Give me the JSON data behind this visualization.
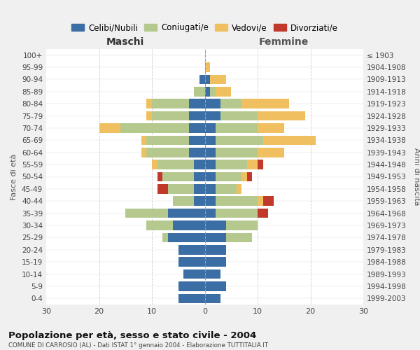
{
  "age_groups": [
    "0-4",
    "5-9",
    "10-14",
    "15-19",
    "20-24",
    "25-29",
    "30-34",
    "35-39",
    "40-44",
    "45-49",
    "50-54",
    "55-59",
    "60-64",
    "65-69",
    "70-74",
    "75-79",
    "80-84",
    "85-89",
    "90-94",
    "95-99",
    "100+"
  ],
  "birth_years": [
    "1999-2003",
    "1994-1998",
    "1989-1993",
    "1984-1988",
    "1979-1983",
    "1974-1978",
    "1969-1973",
    "1964-1968",
    "1959-1963",
    "1954-1958",
    "1949-1953",
    "1944-1948",
    "1939-1943",
    "1934-1938",
    "1929-1933",
    "1924-1928",
    "1919-1923",
    "1914-1918",
    "1909-1913",
    "1904-1908",
    "≤ 1903"
  ],
  "maschi": {
    "celibi": [
      5,
      5,
      4,
      5,
      5,
      7,
      6,
      7,
      2,
      2,
      2,
      2,
      3,
      3,
      3,
      3,
      3,
      0,
      1,
      0,
      0
    ],
    "coniugati": [
      0,
      0,
      0,
      0,
      0,
      1,
      5,
      8,
      4,
      5,
      6,
      7,
      8,
      8,
      13,
      7,
      7,
      2,
      0,
      0,
      0
    ],
    "vedovi": [
      0,
      0,
      0,
      0,
      0,
      0,
      0,
      0,
      0,
      0,
      0,
      1,
      1,
      1,
      4,
      1,
      1,
      0,
      0,
      0,
      0
    ],
    "divorziati": [
      0,
      0,
      0,
      0,
      0,
      0,
      0,
      0,
      0,
      2,
      1,
      0,
      0,
      0,
      0,
      0,
      0,
      0,
      0,
      0,
      0
    ]
  },
  "femmine": {
    "nubili": [
      3,
      4,
      3,
      4,
      4,
      4,
      4,
      2,
      2,
      2,
      2,
      2,
      2,
      2,
      2,
      3,
      3,
      1,
      1,
      0,
      0
    ],
    "coniugate": [
      0,
      0,
      0,
      0,
      0,
      5,
      6,
      8,
      8,
      4,
      5,
      6,
      8,
      9,
      8,
      7,
      4,
      1,
      0,
      0,
      0
    ],
    "vedove": [
      0,
      0,
      0,
      0,
      0,
      0,
      0,
      0,
      1,
      1,
      1,
      2,
      5,
      10,
      5,
      9,
      9,
      3,
      3,
      1,
      0
    ],
    "divorziate": [
      0,
      0,
      0,
      0,
      0,
      0,
      0,
      2,
      2,
      0,
      1,
      1,
      0,
      0,
      0,
      0,
      0,
      0,
      0,
      0,
      0
    ]
  },
  "colors": {
    "celibi": "#3a6ea5",
    "coniugati": "#b5c98e",
    "vedovi": "#f0c060",
    "divorziati": "#c0392b"
  },
  "title": "Popolazione per età, sesso e stato civile - 2004",
  "subtitle": "COMUNE DI CARROSIO (AL) - Dati ISTAT 1° gennaio 2004 - Elaborazione TUTTITALIA.IT",
  "xlabel_left": "Maschi",
  "xlabel_right": "Femmine",
  "ylabel_left": "Fasce di età",
  "ylabel_right": "Anni di nascita",
  "xlim": 30,
  "bg_color": "#f0f0f0",
  "plot_bg_color": "#ffffff"
}
